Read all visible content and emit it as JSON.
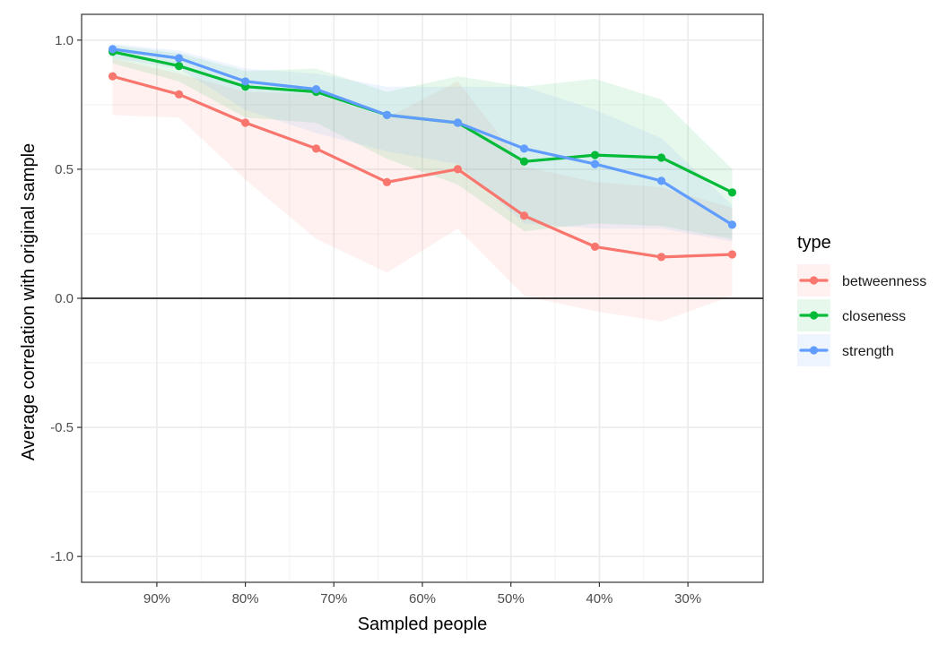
{
  "chart_data": {
    "type": "line",
    "xlabel": "Sampled people",
    "ylabel": "Average correlation with original sample",
    "x": [
      95,
      87.5,
      80,
      72,
      64,
      56,
      48.5,
      40.5,
      33,
      25
    ],
    "x_reversed": true,
    "xlim": [
      98.5,
      21.5
    ],
    "ylim": [
      -1.1,
      1.1
    ],
    "x_ticks": [
      90,
      80,
      70,
      60,
      50,
      40,
      30
    ],
    "x_tick_labels": [
      "90%",
      "80%",
      "70%",
      "60%",
      "50%",
      "40%",
      "30%"
    ],
    "y_ticks": [
      -1.0,
      -0.5,
      0.0,
      0.5,
      1.0
    ],
    "y_tick_labels": [
      "-1.0",
      "-0.5",
      "0.0",
      "0.5",
      "1.0"
    ],
    "hline": 0.0,
    "grid": true,
    "legend": {
      "title": "type",
      "placement": "right"
    },
    "series": [
      {
        "name": "betweenness",
        "color": "#F8766D",
        "values": [
          0.86,
          0.79,
          0.68,
          0.58,
          0.45,
          0.5,
          0.32,
          0.2,
          0.16,
          0.17
        ],
        "lower": [
          0.71,
          0.7,
          0.46,
          0.23,
          0.1,
          0.27,
          0.01,
          -0.05,
          -0.09,
          0.01
        ],
        "upper": [
          0.93,
          0.87,
          0.8,
          0.79,
          0.7,
          0.84,
          0.51,
          0.45,
          0.43,
          0.35
        ]
      },
      {
        "name": "closeness",
        "color": "#00BA38",
        "values": [
          0.955,
          0.9,
          0.82,
          0.8,
          0.71,
          0.68,
          0.53,
          0.555,
          0.545,
          0.41
        ],
        "lower": [
          0.91,
          0.84,
          0.7,
          0.68,
          0.54,
          0.44,
          0.26,
          0.29,
          0.28,
          0.23
        ],
        "upper": [
          0.98,
          0.95,
          0.88,
          0.89,
          0.8,
          0.86,
          0.82,
          0.85,
          0.77,
          0.5
        ]
      },
      {
        "name": "strength",
        "color": "#619CFF",
        "values": [
          0.965,
          0.93,
          0.84,
          0.81,
          0.71,
          0.68,
          0.58,
          0.52,
          0.455,
          0.285
        ],
        "lower": [
          0.93,
          0.89,
          0.73,
          0.64,
          0.57,
          0.52,
          0.29,
          0.27,
          0.27,
          0.22
        ],
        "upper": [
          0.985,
          0.96,
          0.89,
          0.87,
          0.82,
          0.82,
          0.82,
          0.73,
          0.62,
          0.36
        ]
      }
    ]
  }
}
